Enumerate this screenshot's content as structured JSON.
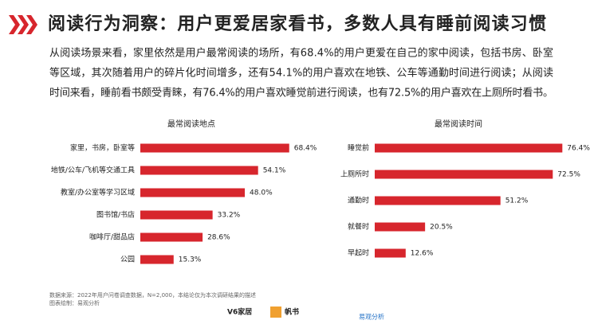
{
  "header": {
    "title": "阅读行为洞察：用户更爱居家看书，多数人具有睡前阅读习惯",
    "paragraph": [
      "从阅读场景来看，家里依然是用户最常阅读的场所，有68.4%的用户更爱在自己的家中阅读，包括书房、卧室",
      "等区域，其次随着用户的碎片化时间增多，还有54.1%的用户喜欢在地铁、公车等通勤时间进行阅读；从阅读",
      "时间来看，睡前看书颇受青睐，有76.4%的用户喜欢睡觉前进行阅读，也有72.5%的用户喜欢在上厕所时看书。"
    ]
  },
  "chart_data": [
    {
      "type": "bar",
      "orientation": "horizontal",
      "title": "最常阅读地点",
      "color": "#d7262d",
      "categories": [
        "家里，书房，卧室等",
        "地铁/公车/飞机等交通工具",
        "教室/办公室等学习区域",
        "图书馆/书店",
        "咖啡厅/甜品店",
        "公园"
      ],
      "values": [
        68.4,
        54.1,
        48.0,
        33.2,
        28.6,
        15.3
      ],
      "value_labels": [
        "68.4%",
        "54.1%",
        "48.0%",
        "33.2%",
        "28.6%",
        "15.3%"
      ]
    },
    {
      "type": "bar",
      "orientation": "horizontal",
      "title": "最常阅读时间",
      "color": "#d7262d",
      "categories": [
        "睡觉前",
        "上厕所时",
        "通勤时",
        "就餐时",
        "早起时"
      ],
      "values": [
        76.4,
        72.5,
        51.2,
        20.5,
        12.6
      ],
      "value_labels": [
        "76.4%",
        "72.5%",
        "51.2%",
        "20.5%",
        "12.6%"
      ]
    }
  ],
  "footer": {
    "source": "数据来源：2022年用户问卷调查数据，N=2,000，本结论仅为本次调研结果的描述",
    "drawn_by": "图表绘制：易观分析",
    "logos": [
      "V6家居",
      "帆书",
      "易观分析"
    ]
  }
}
